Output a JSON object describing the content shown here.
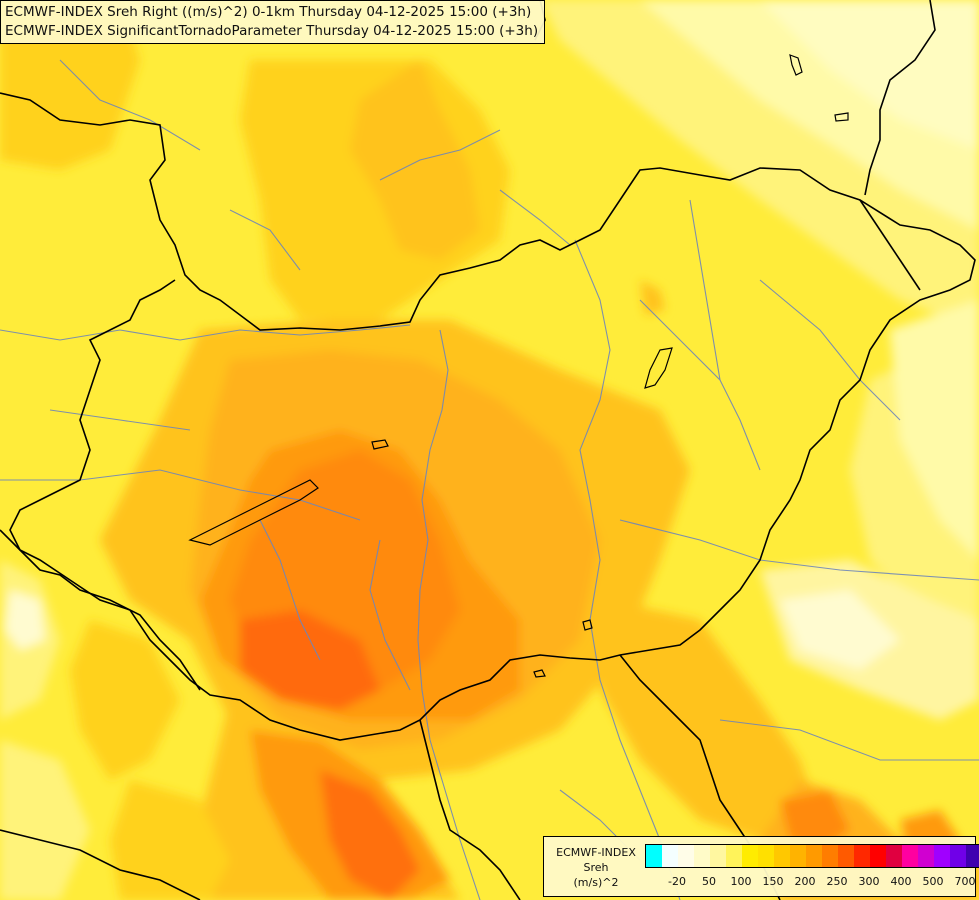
{
  "title": {
    "line1": "ECMWF-INDEX Sreh Right ((m/s)^2) 0-1km Thursday 04-12-2025 15:00 (+3h)",
    "line2": "ECMWF-INDEX SignificantTornadoParameter Thursday 04-12-2025 15:00 (+3h)"
  },
  "legend": {
    "model": "ECMWF-INDEX",
    "variable": "Sreh",
    "unit": "(m/s)^2",
    "colors": [
      "#00ffff",
      "#f4ffff",
      "#fffde8",
      "#fffbc8",
      "#fff7a0",
      "#fff35a",
      "#ffec00",
      "#ffe000",
      "#ffc800",
      "#ffb300",
      "#ff9a00",
      "#ff7d00",
      "#ff5a00",
      "#ff2800",
      "#ff0000",
      "#e00040",
      "#ff00a0",
      "#d000d0",
      "#a000ff",
      "#7000e8",
      "#4000b0",
      "#10005a"
    ],
    "tick_labels": [
      "-20",
      "50",
      "100",
      "150",
      "200",
      "250",
      "300",
      "400",
      "500",
      "700"
    ]
  },
  "colors": {
    "border": "#000000",
    "river": "#6f86b8"
  }
}
